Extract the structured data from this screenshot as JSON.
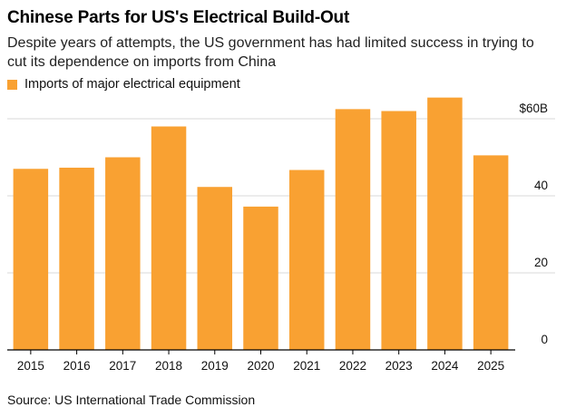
{
  "title": "Chinese Parts for US's Electrical Build-Out",
  "subtitle": "Despite years of attempts, the US government has had limited success in trying to cut its dependence on imports from China",
  "source": "Source: US International Trade Commission",
  "colors": {
    "bar": "#f9a132",
    "grid": "#d9d9d9",
    "axis": "#000000"
  },
  "chart_data": {
    "type": "bar",
    "title": "Chinese Parts for US's Electrical Build-Out",
    "legend": [
      "Imports of major electrical equipment"
    ],
    "legend_position": "top-left",
    "categories": [
      "2015",
      "2016",
      "2017",
      "2018",
      "2019",
      "2020",
      "2021",
      "2022",
      "2023",
      "2024",
      "2025"
    ],
    "series": [
      {
        "name": "Imports of major electrical equipment",
        "values": [
          47,
          47.3,
          50,
          58,
          42.3,
          37.2,
          46.7,
          62.5,
          62,
          65.5,
          50.5
        ]
      }
    ],
    "ylim": [
      0,
      60
    ],
    "yticks": [
      0,
      20,
      40,
      60
    ],
    "ytick_labels": [
      "0",
      "20",
      "40",
      "$60B"
    ],
    "xlabel": "",
    "ylabel": "",
    "grid": true
  }
}
